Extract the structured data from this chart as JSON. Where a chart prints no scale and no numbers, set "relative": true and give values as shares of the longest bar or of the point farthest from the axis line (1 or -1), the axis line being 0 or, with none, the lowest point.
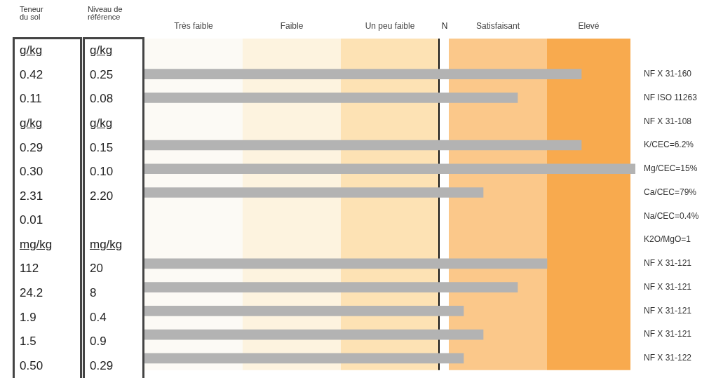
{
  "chart_data": {
    "type": "bar",
    "orientation": "horizontal",
    "relative": true,
    "categories": [
      null,
      "NF X 31-160",
      "NF ISO 11263",
      "NF X 31-108",
      "K/CEC=6.2%",
      "Mg/CEC=15%",
      "Ca/CEC=79%",
      "Na/CEC=0.4%",
      "K2O/MgO=1",
      "NF X 31-121",
      "NF X 31-121",
      "NF X 31-121",
      "NF X 31-121",
      "NF X 31-122"
    ],
    "values": [
      null,
      0.89,
      0.76,
      null,
      0.89,
      1,
      0.69,
      null,
      null,
      0.82,
      0.76,
      0.65,
      0.69,
      0.65
    ],
    "color": "#b3b3b3",
    "bands": [
      {
        "axis": "x",
        "from": 0,
        "to": 0.2,
        "label": "Très faible",
        "color": "#fcfaf5"
      },
      {
        "axis": "x",
        "from": 0.2,
        "to": 0.4,
        "label": "Faible",
        "color": "#fdf3df"
      },
      {
        "axis": "x",
        "from": 0.4,
        "to": 0.6,
        "label": "Un peu faible",
        "color": "#fde2b4"
      },
      {
        "axis": "x",
        "from": 0.62,
        "to": 0.82,
        "label": "Satisfaisant",
        "color": "#fbc88a"
      },
      {
        "axis": "x",
        "from": 0.82,
        "to": 0.99,
        "label": "Elevé",
        "color": "#f8aa4e"
      }
    ],
    "ref_lines": [
      {
        "axis": "x",
        "value": 0.6,
        "label": "N",
        "color": "#111111"
      }
    ],
    "annotations": [
      "Teneur du sol\tNiveau de référence",
      "g/kg\tg/kg",
      "0.42\t0.25",
      "0.11\t0.08",
      "g/kg\tg/kg",
      "0.29\t0.15",
      "0.30\t0.10",
      "2.31\t2.20",
      "0.01",
      "mg/kg\tmg/kg",
      "112\t20",
      "24.2\t8",
      "1.9\t0.4",
      "1.5\t0.9",
      "0.50\t0.29"
    ],
    "legend": false
  }
}
